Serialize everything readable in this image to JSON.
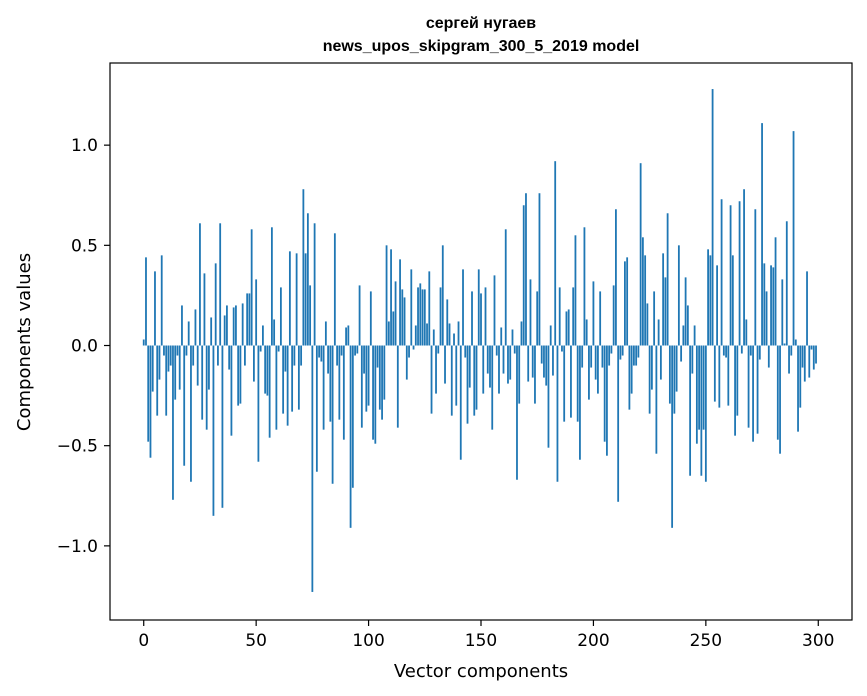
{
  "chart_data": {
    "type": "bar",
    "title_lines": [
      "сергей нугаев",
      "news_upos_skipgram_300_5_2019 model"
    ],
    "xlabel": "Vector components",
    "ylabel": "Components values",
    "xlim": [
      -15,
      315
    ],
    "ylim": [
      -1.37,
      1.41
    ],
    "xticks": [
      0,
      50,
      100,
      150,
      200,
      250,
      300
    ],
    "xtick_labels": [
      "0",
      "50",
      "100",
      "150",
      "200",
      "250",
      "300"
    ],
    "yticks": [
      -1.0,
      -0.5,
      0.0,
      0.5,
      1.0
    ],
    "ytick_labels": [
      "−1.0",
      "−0.5",
      "0.0",
      "0.5",
      "1.0"
    ],
    "grid": false,
    "bar_color": "#1f77b4",
    "x_start": 0,
    "values": [
      0.03,
      0.44,
      -0.48,
      -0.56,
      -0.23,
      0.37,
      -0.35,
      -0.17,
      0.45,
      -0.05,
      -0.35,
      -0.13,
      -0.1,
      -0.77,
      -0.27,
      -0.05,
      -0.22,
      0.2,
      -0.6,
      -0.05,
      0.12,
      -0.68,
      -0.1,
      0.18,
      -0.2,
      0.61,
      -0.37,
      0.36,
      -0.42,
      -0.22,
      0.14,
      -0.85,
      0.41,
      -0.1,
      0.61,
      -0.81,
      0.15,
      0.2,
      -0.12,
      -0.45,
      0.19,
      0.2,
      -0.3,
      -0.29,
      0.21,
      -0.1,
      0.26,
      0.26,
      0.58,
      -0.18,
      0.33,
      -0.58,
      -0.03,
      0.1,
      -0.24,
      -0.25,
      -0.46,
      0.59,
      0.13,
      -0.42,
      -0.03,
      0.29,
      -0.34,
      -0.13,
      -0.4,
      0.47,
      -0.33,
      -0.1,
      0.46,
      -0.32,
      -0.1,
      0.78,
      0.46,
      0.66,
      0.3,
      -1.23,
      0.61,
      -0.63,
      -0.06,
      -0.08,
      -0.42,
      0.12,
      -0.14,
      -0.38,
      -0.69,
      0.56,
      -0.1,
      -0.37,
      -0.05,
      -0.47,
      0.09,
      0.1,
      -0.91,
      -0.71,
      -0.05,
      -0.04,
      0.3,
      -0.41,
      -0.14,
      -0.33,
      -0.3,
      0.27,
      -0.47,
      -0.49,
      -0.11,
      -0.32,
      -0.37,
      -0.27,
      0.5,
      0.12,
      0.48,
      0.17,
      0.32,
      -0.41,
      0.43,
      0.28,
      0.24,
      -0.17,
      -0.06,
      0.38,
      -0.02,
      0.1,
      0.29,
      0.31,
      0.28,
      0.28,
      0.11,
      0.37,
      -0.34,
      0.08,
      -0.24,
      -0.04,
      0.29,
      0.5,
      -0.19,
      0.23,
      0.11,
      -0.35,
      0.06,
      -0.3,
      0.12,
      -0.57,
      0.38,
      -0.06,
      -0.39,
      -0.21,
      0.27,
      -0.35,
      -0.32,
      0.38,
      0.26,
      -0.24,
      0.29,
      -0.14,
      -0.21,
      -0.42,
      0.35,
      -0.05,
      -0.24,
      0.09,
      -0.14,
      0.58,
      -0.19,
      -0.17,
      0.08,
      -0.04,
      -0.67,
      -0.29,
      0.12,
      0.7,
      0.76,
      -0.18,
      0.33,
      -0.16,
      -0.29,
      0.27,
      0.76,
      -0.09,
      -0.16,
      -0.2,
      -0.51,
      0.1,
      -0.15,
      0.92,
      -0.68,
      0.29,
      -0.03,
      -0.38,
      0.17,
      0.18,
      -0.36,
      0.29,
      0.55,
      -0.38,
      -0.57,
      -0.11,
      0.59,
      0.13,
      -0.27,
      -0.11,
      0.32,
      -0.17,
      -0.24,
      0.27,
      -0.11,
      -0.48,
      -0.55,
      -0.1,
      -0.04,
      0.3,
      0.68,
      -0.78,
      -0.07,
      -0.05,
      0.42,
      0.44,
      -0.32,
      -0.24,
      -0.1,
      -0.1,
      -0.06,
      0.91,
      0.54,
      0.45,
      0.21,
      -0.34,
      -0.22,
      0.27,
      -0.54,
      0.13,
      -0.17,
      0.46,
      0.34,
      0.66,
      -0.29,
      -0.91,
      -0.34,
      -0.23,
      0.5,
      -0.08,
      0.1,
      0.34,
      0.2,
      -0.65,
      -0.14,
      0.1,
      -0.49,
      -0.42,
      -0.65,
      -0.42,
      -0.68,
      0.48,
      0.45,
      1.28,
      -0.28,
      0.4,
      -0.31,
      0.73,
      -0.05,
      -0.06,
      -0.3,
      0.7,
      0.45,
      -0.45,
      -0.35,
      0.72,
      -0.04,
      0.78,
      0.13,
      -0.41,
      -0.05,
      -0.48,
      0.68,
      -0.44,
      -0.07,
      1.11,
      0.41,
      0.27,
      -0.11,
      0.4,
      0.39,
      0.54,
      -0.47,
      -0.54,
      0.33,
      0.01,
      0.62,
      -0.14,
      -0.05,
      1.07,
      0.03,
      -0.43,
      -0.31,
      -0.11,
      -0.18,
      0.37,
      -0.16,
      -0.02,
      -0.12,
      -0.09
    ]
  }
}
